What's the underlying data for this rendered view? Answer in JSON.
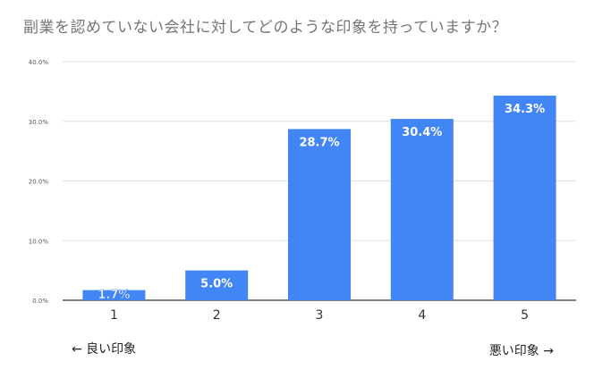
{
  "chart_data": {
    "type": "bar",
    "title": "副業を認めていない会社に対してどのような印象を持っていますか？",
    "categories": [
      "1",
      "2",
      "3",
      "4",
      "5"
    ],
    "values": [
      1.7,
      5.0,
      28.7,
      30.4,
      34.3
    ],
    "value_labels": [
      "1.7%",
      "5.0%",
      "28.7%",
      "30.4%",
      "34.3%"
    ],
    "y_ticks": [
      0,
      10,
      20,
      30,
      40
    ],
    "y_tick_labels": [
      "0.0%",
      "10.0%",
      "20.0%",
      "30.0%",
      "40.0%"
    ],
    "ylim": [
      0,
      40
    ],
    "grid": true,
    "bar_color": "#4285f4",
    "xlabel": "",
    "ylabel": ""
  },
  "annotations": {
    "left_label": "← 良い印象",
    "right_label": "悪い印象 →"
  }
}
